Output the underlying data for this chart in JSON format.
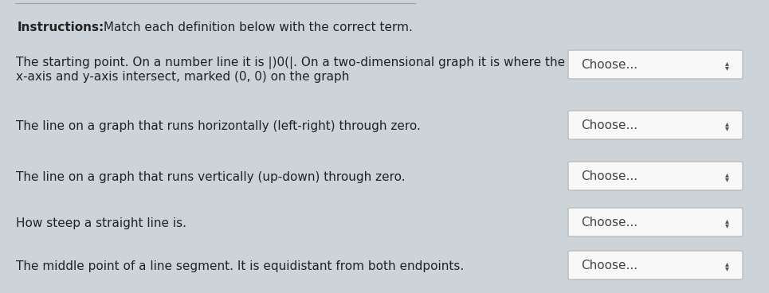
{
  "background_color": "#ccd4da",
  "panel_color": "#d6dde2",
  "title_bold": "Instructions:",
  "title_rest": " Match each definition below with the correct term.",
  "definitions": [
    "The starting point. On a number line it is ||0||. On a two-dimensional graph it is where the\nx-axis and y-axis intersect, marked (0, 0) on the graph",
    "The line on a graph that runs horizontally (left-right) through zero.",
    "The line on a graph that runs vertically (up-down) through zero.",
    "How steep a straight line is.",
    "The middle point of a line segment. It is equidistant from both endpoints."
  ],
  "def1_line1": "The starting point. On a number line it is |)0(|. On a two-dimensional graph it is where the",
  "def1_line2": "x-axis and y-axis intersect, marked (0, 0) on the graph",
  "dropdown_label": "Choose...",
  "dropdown_bg": "#f8f8f8",
  "dropdown_border": "#bbbbbb",
  "text_color": "#222222",
  "font_size_title": 11,
  "font_size_body": 11,
  "font_size_dropdown": 11,
  "figwidth": 9.65,
  "figheight": 3.68,
  "dpi": 100
}
